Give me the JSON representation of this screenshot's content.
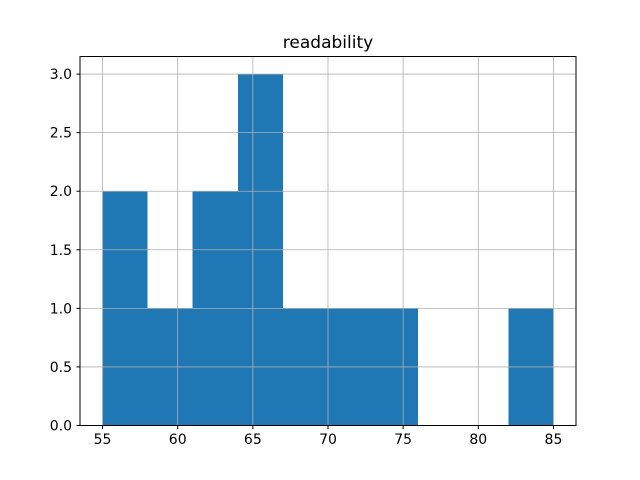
{
  "chart_data": {
    "type": "bar",
    "subtype": "histogram",
    "title": "readability",
    "xlabel": "",
    "ylabel": "",
    "bin_edges": [
      55,
      58,
      61,
      64,
      67,
      70,
      73,
      76,
      79,
      82,
      85
    ],
    "values": [
      2,
      1,
      2,
      3,
      1,
      1,
      1,
      0,
      0,
      1
    ],
    "xlim": [
      53.5,
      86.5
    ],
    "ylim": [
      0,
      3.15
    ],
    "xticks": [
      55,
      60,
      65,
      70,
      75,
      80,
      85
    ],
    "xtick_labels": [
      "55",
      "60",
      "65",
      "70",
      "75",
      "80",
      "85"
    ],
    "yticks": [
      0.0,
      0.5,
      1.0,
      1.5,
      2.0,
      2.5,
      3.0
    ],
    "ytick_labels": [
      "0.0",
      "0.5",
      "1.0",
      "1.5",
      "2.0",
      "2.5",
      "3.0"
    ],
    "grid": true,
    "legend": false,
    "bar_color": "#1f77b4",
    "grid_color": "#b0b0b0",
    "spine_color": "#000000",
    "background_color": "#ffffff"
  }
}
